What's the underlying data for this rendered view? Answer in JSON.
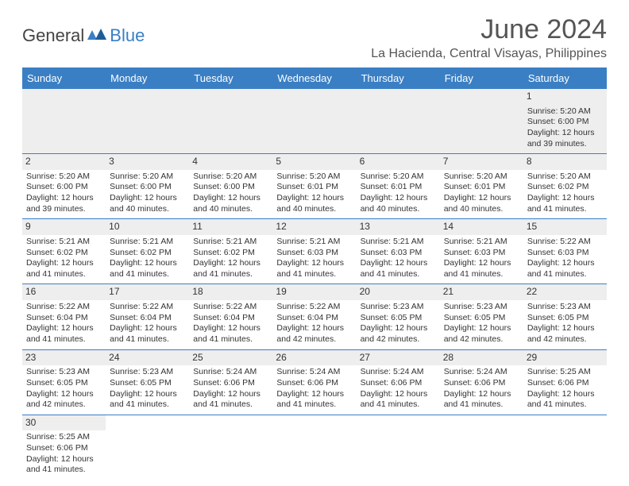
{
  "brand": {
    "general": "General",
    "blue": "Blue"
  },
  "title": "June 2024",
  "subtitle": "La Hacienda, Central Visayas, Philippines",
  "colors": {
    "header_bg": "#3a7fc4",
    "header_text": "#ffffff",
    "daynum_bg": "#eeeeee",
    "divider": "#3a7fc4",
    "text": "#333333",
    "logo_accent": "#3a7fc4",
    "page_bg": "#ffffff"
  },
  "weekdays": [
    "Sunday",
    "Monday",
    "Tuesday",
    "Wednesday",
    "Thursday",
    "Friday",
    "Saturday"
  ],
  "weeks": [
    [
      null,
      null,
      null,
      null,
      null,
      null,
      {
        "n": "1",
        "sr": "5:20 AM",
        "ss": "6:00 PM",
        "dl": "12 hours and 39 minutes."
      }
    ],
    [
      {
        "n": "2",
        "sr": "5:20 AM",
        "ss": "6:00 PM",
        "dl": "12 hours and 39 minutes."
      },
      {
        "n": "3",
        "sr": "5:20 AM",
        "ss": "6:00 PM",
        "dl": "12 hours and 40 minutes."
      },
      {
        "n": "4",
        "sr": "5:20 AM",
        "ss": "6:00 PM",
        "dl": "12 hours and 40 minutes."
      },
      {
        "n": "5",
        "sr": "5:20 AM",
        "ss": "6:01 PM",
        "dl": "12 hours and 40 minutes."
      },
      {
        "n": "6",
        "sr": "5:20 AM",
        "ss": "6:01 PM",
        "dl": "12 hours and 40 minutes."
      },
      {
        "n": "7",
        "sr": "5:20 AM",
        "ss": "6:01 PM",
        "dl": "12 hours and 40 minutes."
      },
      {
        "n": "8",
        "sr": "5:20 AM",
        "ss": "6:02 PM",
        "dl": "12 hours and 41 minutes."
      }
    ],
    [
      {
        "n": "9",
        "sr": "5:21 AM",
        "ss": "6:02 PM",
        "dl": "12 hours and 41 minutes."
      },
      {
        "n": "10",
        "sr": "5:21 AM",
        "ss": "6:02 PM",
        "dl": "12 hours and 41 minutes."
      },
      {
        "n": "11",
        "sr": "5:21 AM",
        "ss": "6:02 PM",
        "dl": "12 hours and 41 minutes."
      },
      {
        "n": "12",
        "sr": "5:21 AM",
        "ss": "6:03 PM",
        "dl": "12 hours and 41 minutes."
      },
      {
        "n": "13",
        "sr": "5:21 AM",
        "ss": "6:03 PM",
        "dl": "12 hours and 41 minutes."
      },
      {
        "n": "14",
        "sr": "5:21 AM",
        "ss": "6:03 PM",
        "dl": "12 hours and 41 minutes."
      },
      {
        "n": "15",
        "sr": "5:22 AM",
        "ss": "6:03 PM",
        "dl": "12 hours and 41 minutes."
      }
    ],
    [
      {
        "n": "16",
        "sr": "5:22 AM",
        "ss": "6:04 PM",
        "dl": "12 hours and 41 minutes."
      },
      {
        "n": "17",
        "sr": "5:22 AM",
        "ss": "6:04 PM",
        "dl": "12 hours and 41 minutes."
      },
      {
        "n": "18",
        "sr": "5:22 AM",
        "ss": "6:04 PM",
        "dl": "12 hours and 41 minutes."
      },
      {
        "n": "19",
        "sr": "5:22 AM",
        "ss": "6:04 PM",
        "dl": "12 hours and 42 minutes."
      },
      {
        "n": "20",
        "sr": "5:23 AM",
        "ss": "6:05 PM",
        "dl": "12 hours and 42 minutes."
      },
      {
        "n": "21",
        "sr": "5:23 AM",
        "ss": "6:05 PM",
        "dl": "12 hours and 42 minutes."
      },
      {
        "n": "22",
        "sr": "5:23 AM",
        "ss": "6:05 PM",
        "dl": "12 hours and 42 minutes."
      }
    ],
    [
      {
        "n": "23",
        "sr": "5:23 AM",
        "ss": "6:05 PM",
        "dl": "12 hours and 42 minutes."
      },
      {
        "n": "24",
        "sr": "5:23 AM",
        "ss": "6:05 PM",
        "dl": "12 hours and 41 minutes."
      },
      {
        "n": "25",
        "sr": "5:24 AM",
        "ss": "6:06 PM",
        "dl": "12 hours and 41 minutes."
      },
      {
        "n": "26",
        "sr": "5:24 AM",
        "ss": "6:06 PM",
        "dl": "12 hours and 41 minutes."
      },
      {
        "n": "27",
        "sr": "5:24 AM",
        "ss": "6:06 PM",
        "dl": "12 hours and 41 minutes."
      },
      {
        "n": "28",
        "sr": "5:24 AM",
        "ss": "6:06 PM",
        "dl": "12 hours and 41 minutes."
      },
      {
        "n": "29",
        "sr": "5:25 AM",
        "ss": "6:06 PM",
        "dl": "12 hours and 41 minutes."
      }
    ],
    [
      {
        "n": "30",
        "sr": "5:25 AM",
        "ss": "6:06 PM",
        "dl": "12 hours and 41 minutes."
      },
      null,
      null,
      null,
      null,
      null,
      null
    ]
  ],
  "labels": {
    "sunrise": "Sunrise: ",
    "sunset": "Sunset: ",
    "daylight": "Daylight: "
  }
}
